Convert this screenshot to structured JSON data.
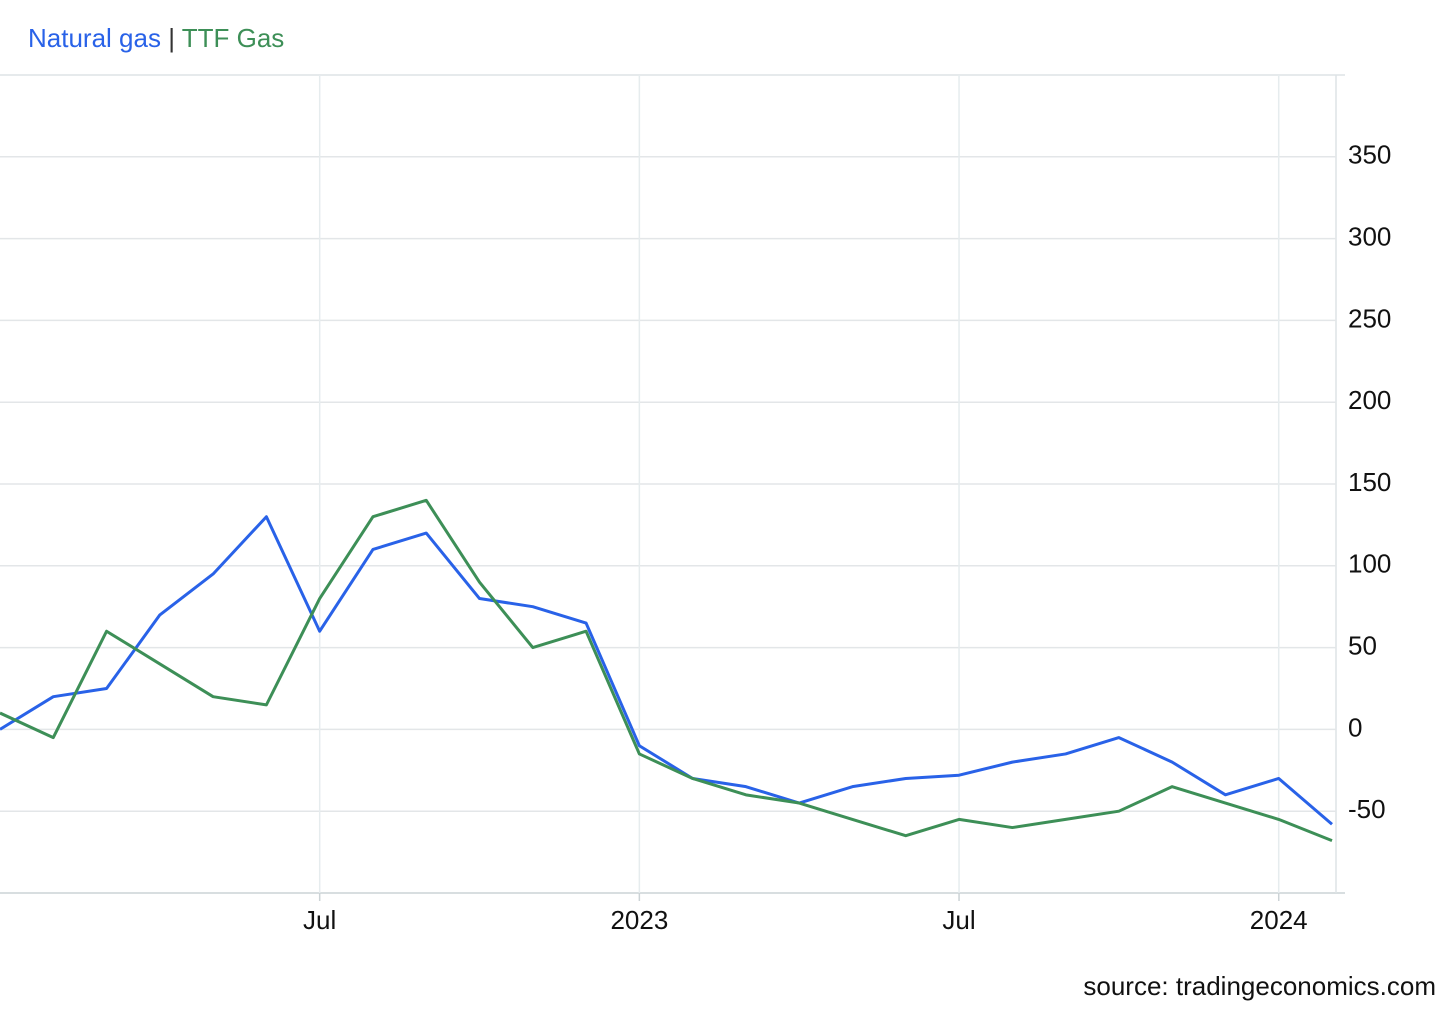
{
  "chart_data": {
    "type": "line",
    "legend_separator": "|",
    "source": "source: tradingeconomics.com",
    "x": [
      "2022-01",
      "2022-02",
      "2022-03",
      "2022-04",
      "2022-05",
      "2022-06",
      "2022-07",
      "2022-08",
      "2022-09",
      "2022-10",
      "2022-11",
      "2022-12",
      "2023-01",
      "2023-02",
      "2023-03",
      "2023-04",
      "2023-05",
      "2023-06",
      "2023-07",
      "2023-08",
      "2023-09",
      "2023-10",
      "2023-11",
      "2023-12",
      "2024-01",
      "2024-02"
    ],
    "series": [
      {
        "name": "Natural gas",
        "color": "#2962e8",
        "values": [
          0,
          20,
          25,
          70,
          95,
          130,
          60,
          110,
          120,
          80,
          75,
          65,
          -10,
          -30,
          -35,
          -45,
          -35,
          -30,
          -28,
          -20,
          -15,
          -5,
          -20,
          -40,
          -30,
          -58
        ]
      },
      {
        "name": "TTF Gas",
        "color": "#3d8f57",
        "values": [
          10,
          -5,
          60,
          40,
          20,
          15,
          80,
          130,
          140,
          90,
          50,
          60,
          -15,
          -30,
          -40,
          -45,
          -55,
          -65,
          -55,
          -60,
          -55,
          -50,
          -35,
          -45,
          -55,
          -68
        ]
      }
    ],
    "xlim": [
      "2022-01",
      "2024-02"
    ],
    "xticks": [
      {
        "value": "2022-07",
        "label": "Jul"
      },
      {
        "value": "2023-01",
        "label": "2023"
      },
      {
        "value": "2023-07",
        "label": "Jul"
      },
      {
        "value": "2024-01",
        "label": "2024"
      }
    ],
    "ylim": [
      -100,
      400
    ],
    "yticks": [
      -50,
      0,
      50,
      100,
      150,
      200,
      250,
      300,
      350
    ],
    "grid": true
  }
}
